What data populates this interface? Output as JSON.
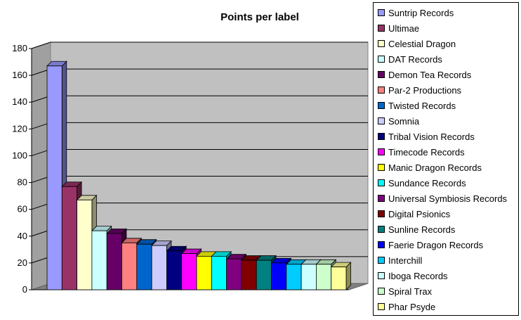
{
  "chart_data": {
    "type": "bar",
    "title": "Points per label",
    "xlabel": "",
    "ylabel": "",
    "ylim": [
      0,
      180
    ],
    "yticks": [
      0,
      20,
      40,
      60,
      80,
      100,
      120,
      140,
      160,
      180
    ],
    "grid": true,
    "legend_position": "right",
    "categories": [
      "Suntrip Records",
      "Ultimae",
      "Celestial Dragon",
      "DAT Records",
      "Demon Tea Records",
      "Par-2 Productions",
      "Twisted Records",
      "Somnia",
      "Tribal Vision Records",
      "Timecode Records",
      "Manic Dragon Records",
      "Sundance Records",
      "Universal Symbiosis Records",
      "Digital Psionics",
      "Sunline Records",
      "Faerie Dragon Records",
      "Interchill",
      "Iboga Records",
      "Spiral Trax",
      "Phar Psyde"
    ],
    "values": [
      167,
      77,
      67,
      44,
      42,
      35,
      34,
      33,
      29,
      27,
      25,
      25,
      23,
      22,
      22,
      20,
      19,
      19,
      19,
      17
    ],
    "colors": [
      "#9999ff",
      "#993366",
      "#ffffcc",
      "#ccffff",
      "#660066",
      "#ff8080",
      "#0066cc",
      "#ccccff",
      "#000080",
      "#ff00ff",
      "#ffff00",
      "#00ffff",
      "#800080",
      "#800000",
      "#008080",
      "#0000ff",
      "#00ccff",
      "#ccffff",
      "#ccffcc",
      "#ffff99"
    ],
    "plot_background": "#c0c0c0"
  }
}
